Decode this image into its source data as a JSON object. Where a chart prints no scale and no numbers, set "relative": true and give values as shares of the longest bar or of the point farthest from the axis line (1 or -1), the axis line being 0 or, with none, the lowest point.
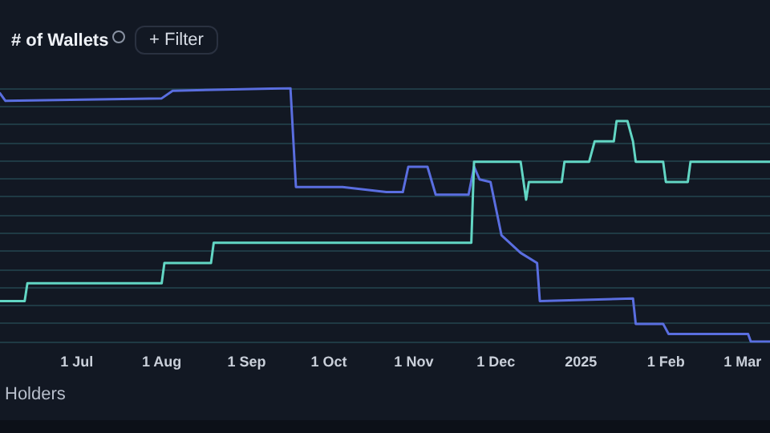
{
  "chart_data": {
    "type": "line",
    "title": "# of Wallets",
    "relative": true,
    "grid": "y",
    "annotations": [
      "+ Filter",
      "Holders"
    ],
    "xlim": [
      "2024-06-03",
      "2025-03-11"
    ],
    "xticks": [
      {
        "value": "2024-07-01",
        "label": "1 Jul"
      },
      {
        "value": "2024-08-01",
        "label": "1 Aug"
      },
      {
        "value": "2024-09-01",
        "label": "1 Sep"
      },
      {
        "value": "2024-10-01",
        "label": "1 Oct"
      },
      {
        "value": "2024-11-01",
        "label": "1 Nov"
      },
      {
        "value": "2024-12-01",
        "label": "1 Dec"
      },
      {
        "value": "2025-01-01",
        "label": "2025"
      },
      {
        "value": "2025-02-01",
        "label": "1 Feb"
      },
      {
        "value": "2025-03-01",
        "label": "1 Mar"
      }
    ],
    "series": [
      {
        "color": "#5a6ee0",
        "x": [
          "2024-06-03",
          "2024-06-05",
          "2024-08-01",
          "2024-08-05",
          "2024-09-17",
          "2024-09-19",
          "2024-10-06",
          "2024-10-22",
          "2024-10-28",
          "2024-10-30",
          "2024-11-06",
          "2024-11-09",
          "2024-11-21",
          "2024-11-23",
          "2024-11-25",
          "2024-11-29",
          "2024-12-03",
          "2024-12-10",
          "2024-12-16",
          "2024-12-17",
          "2025-01-20",
          "2025-01-21",
          "2025-01-31",
          "2025-02-02",
          "2025-03-03",
          "2025-03-04",
          "2025-03-11"
        ],
        "values": [
          0.98,
          0.95,
          0.96,
          0.99,
          1.0,
          0.61,
          0.61,
          0.59,
          0.59,
          0.69,
          0.69,
          0.58,
          0.58,
          0.69,
          0.64,
          0.63,
          0.42,
          0.35,
          0.31,
          0.16,
          0.17,
          0.07,
          0.07,
          0.03,
          0.03,
          0,
          0
        ]
      },
      {
        "color": "#62d6c4",
        "x": [
          "2024-06-03",
          "2024-06-12",
          "2024-06-13",
          "2024-08-01",
          "2024-08-02",
          "2024-08-19",
          "2024-08-20",
          "2024-11-22",
          "2024-11-23",
          "2024-12-10",
          "2024-12-12",
          "2024-12-13",
          "2024-12-25",
          "2024-12-26",
          "2025-01-04",
          "2025-01-06",
          "2025-01-13",
          "2025-01-14",
          "2025-01-18",
          "2025-01-20",
          "2025-01-21",
          "2025-01-31",
          "2025-02-01",
          "2025-02-09",
          "2025-02-10",
          "2025-03-11"
        ],
        "values": [
          0.16,
          0.16,
          0.23,
          0.23,
          0.31,
          0.31,
          0.39,
          0.39,
          0.71,
          0.71,
          0.56,
          0.63,
          0.63,
          0.71,
          0.71,
          0.79,
          0.79,
          0.87,
          0.87,
          0.79,
          0.71,
          0.71,
          0.63,
          0.63,
          0.71,
          0.71
        ]
      }
    ]
  }
}
